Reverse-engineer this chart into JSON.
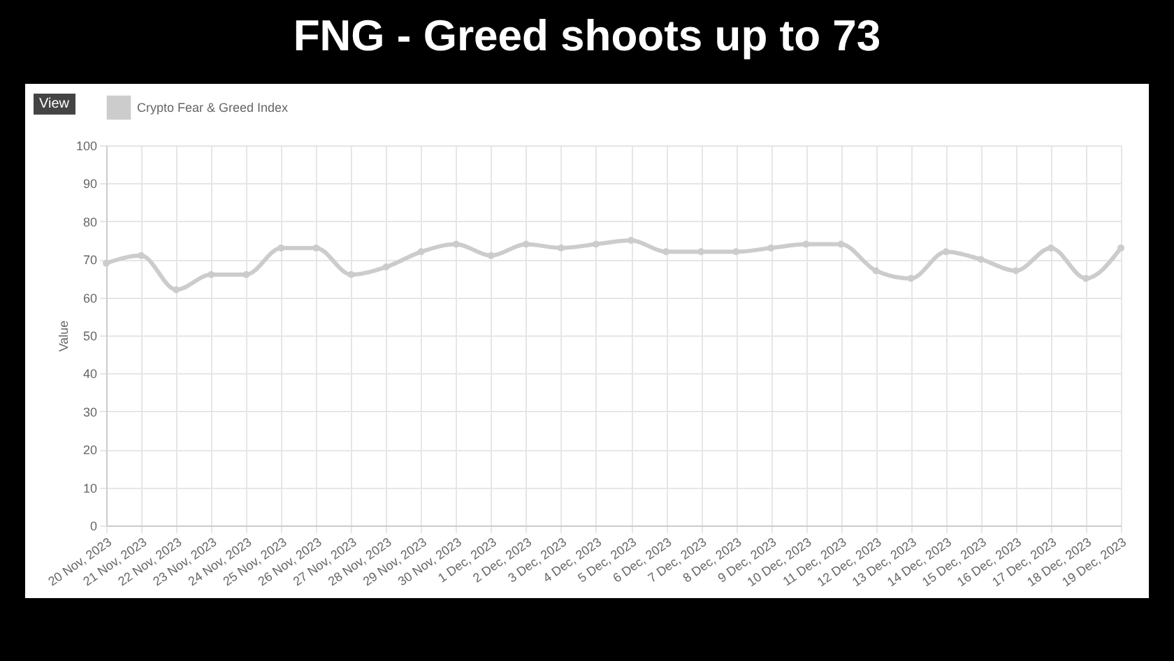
{
  "chart_data": {
    "type": "line",
    "title": "FNG - Greed shoots up to 73",
    "ylabel": "Value",
    "categories": [
      "20 Nov, 2023",
      "21 Nov, 2023",
      "22 Nov, 2023",
      "23 Nov, 2023",
      "24 Nov, 2023",
      "25 Nov, 2023",
      "26 Nov, 2023",
      "27 Nov, 2023",
      "28 Nov, 2023",
      "29 Nov, 2023",
      "30 Nov, 2023",
      "1 Dec, 2023",
      "2 Dec, 2023",
      "3 Dec, 2023",
      "4 Dec, 2023",
      "5 Dec, 2023",
      "6 Dec, 2023",
      "7 Dec, 2023",
      "8 Dec, 2023",
      "9 Dec, 2023",
      "10 Dec, 2023",
      "11 Dec, 2023",
      "12 Dec, 2023",
      "13 Dec, 2023",
      "14 Dec, 2023",
      "15 Dec, 2023",
      "16 Dec, 2023",
      "17 Dec, 2023",
      "18 Dec, 2023",
      "19 Dec, 2023"
    ],
    "series": [
      {
        "name": "Crypto Fear & Greed Index",
        "color": "#cccccc",
        "values": [
          69,
          71,
          62,
          66,
          66,
          73,
          73,
          66,
          68,
          72,
          74,
          71,
          74,
          73,
          74,
          75,
          72,
          72,
          72,
          73,
          74,
          74,
          67,
          65,
          72,
          70,
          67,
          73,
          65,
          73
        ]
      }
    ],
    "ylim": [
      0,
      100
    ],
    "yticks": [
      0,
      10,
      20,
      30,
      40,
      50,
      60,
      70,
      80,
      90,
      100
    ],
    "grid": true,
    "legend": "top",
    "marker": "circle",
    "line_style": "solid",
    "annotations": [
      "View"
    ]
  }
}
